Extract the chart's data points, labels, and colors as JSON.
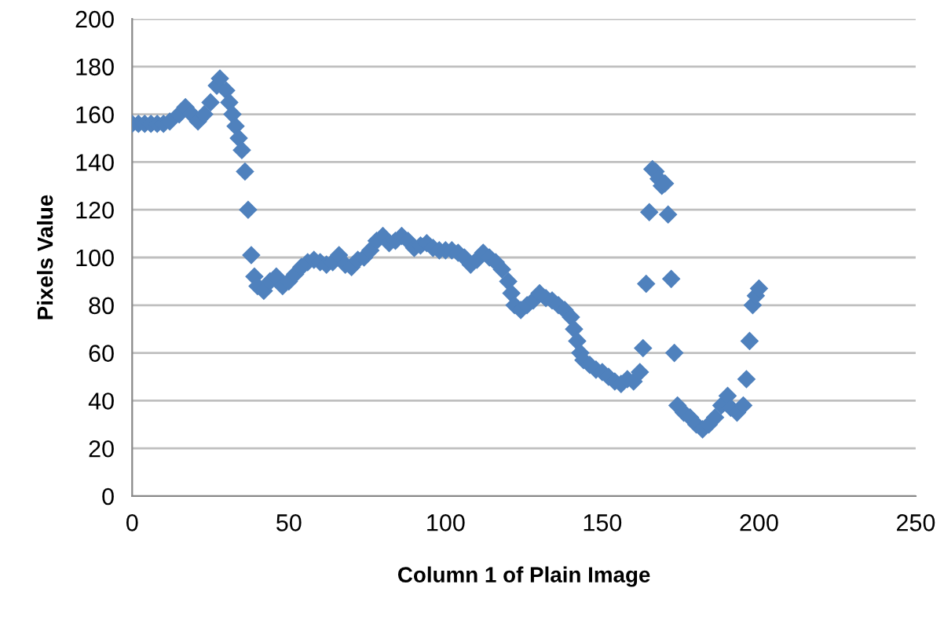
{
  "chart_data": {
    "type": "scatter",
    "xlabel": "Column 1 of Plain Image",
    "ylabel": "Pixels Value",
    "x": [
      0,
      2,
      4,
      6,
      8,
      10,
      12,
      15,
      17,
      19,
      21,
      23,
      25,
      27,
      28,
      30,
      31,
      32,
      33,
      34,
      35,
      36,
      37,
      38,
      39,
      40,
      42,
      44,
      46,
      48,
      50,
      52,
      54,
      56,
      58,
      60,
      62,
      64,
      66,
      68,
      70,
      72,
      74,
      76,
      78,
      80,
      82,
      84,
      86,
      88,
      90,
      92,
      94,
      96,
      98,
      100,
      102,
      104,
      106,
      108,
      110,
      112,
      114,
      116,
      118,
      120,
      121,
      122,
      124,
      126,
      128,
      130,
      132,
      134,
      136,
      138,
      140,
      141,
      142,
      143,
      144,
      146,
      148,
      150,
      152,
      154,
      156,
      158,
      160,
      162,
      163,
      164,
      165,
      166,
      167,
      168,
      169,
      170,
      171,
      172,
      173,
      174,
      176,
      178,
      180,
      182,
      184,
      186,
      188,
      190,
      191,
      193,
      195,
      196,
      197,
      198,
      199,
      200
    ],
    "series": [
      {
        "color": "#4f81bd",
        "values": [
          156,
          156,
          156,
          156,
          156,
          156,
          157,
          160,
          163,
          160,
          157,
          160,
          165,
          172,
          175,
          170,
          165,
          160,
          155,
          150,
          145,
          136,
          120,
          101,
          92,
          88,
          86,
          90,
          92,
          88,
          90,
          93,
          96,
          98,
          99,
          98,
          97,
          98,
          101,
          97,
          96,
          99,
          100,
          103,
          107,
          109,
          106,
          107,
          109,
          107,
          104,
          105,
          106,
          104,
          103,
          103,
          103,
          102,
          100,
          97,
          99,
          102,
          100,
          98,
          95,
          90,
          85,
          80,
          78,
          80,
          82,
          85,
          83,
          82,
          80,
          78,
          75,
          70,
          65,
          60,
          57,
          55,
          53,
          52,
          50,
          48,
          47,
          49,
          48,
          52,
          62,
          89,
          119,
          137,
          136,
          133,
          130,
          131,
          118,
          91,
          60,
          38,
          35,
          33,
          30,
          28,
          30,
          33,
          38,
          42,
          37,
          35,
          38,
          49,
          65,
          80,
          84,
          87
        ]
      }
    ],
    "xlim": [
      0,
      250
    ],
    "xticks": [
      0,
      50,
      100,
      150,
      200,
      250
    ],
    "ylim": [
      0,
      200
    ],
    "yticks": [
      0,
      20,
      40,
      60,
      80,
      100,
      120,
      140,
      160,
      180,
      200
    ],
    "grid": "y",
    "marker": "diamond",
    "legend": false
  }
}
